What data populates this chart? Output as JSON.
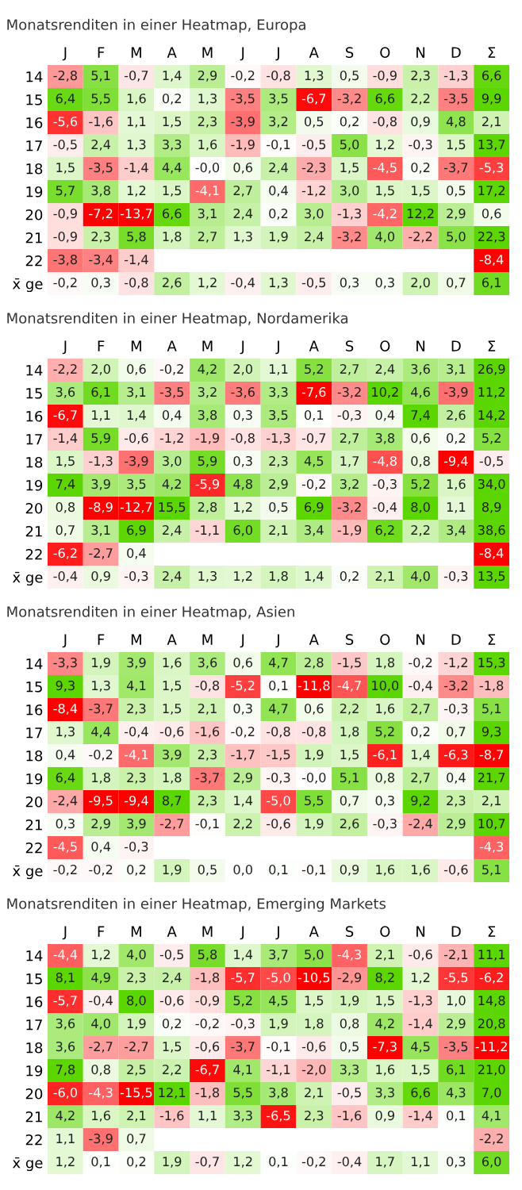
{
  "chart_data": [
    {
      "type": "heatmap",
      "title": "Monatsrenditen in einer Heatmap, Europa",
      "categories": [
        "J",
        "F",
        "M",
        "A",
        "M",
        "J",
        "J",
        "A",
        "S",
        "O",
        "N",
        "D",
        "Σ"
      ],
      "y_categories": [
        "14",
        "15",
        "16",
        "17",
        "18",
        "19",
        "20",
        "21",
        "22",
        "x̄ ge"
      ],
      "cells": [
        [
          -2.8,
          5.1,
          -0.7,
          1.4,
          2.9,
          -0.2,
          -0.8,
          1.3,
          0.5,
          -0.9,
          2.3,
          -1.3,
          6.6
        ],
        [
          6.4,
          5.5,
          1.6,
          0.2,
          1.3,
          -3.5,
          3.5,
          -6.7,
          -3.2,
          6.6,
          2.2,
          -3.5,
          9.9
        ],
        [
          -5.6,
          -1.6,
          1.1,
          1.5,
          2.3,
          -3.9,
          3.2,
          0.5,
          0.2,
          -0.8,
          0.9,
          4.8,
          2.1
        ],
        [
          -0.5,
          2.4,
          1.3,
          3.3,
          1.6,
          -1.9,
          -0.1,
          -0.5,
          5.0,
          1.2,
          -0.3,
          1.5,
          13.7
        ],
        [
          1.5,
          -3.5,
          -1.4,
          4.4,
          -0.0,
          0.6,
          2.4,
          -2.3,
          1.5,
          -4.5,
          0.2,
          -3.7,
          -5.3
        ],
        [
          5.7,
          3.8,
          1.2,
          1.5,
          -4.1,
          2.7,
          0.4,
          -1.2,
          3.0,
          1.5,
          1.5,
          0.5,
          17.2
        ],
        [
          -0.9,
          -7.2,
          -13.7,
          6.6,
          3.1,
          2.4,
          0.2,
          3.0,
          -1.3,
          -4.2,
          12.2,
          2.9,
          0.6
        ],
        [
          -0.9,
          2.3,
          5.8,
          1.8,
          2.7,
          1.3,
          1.9,
          2.4,
          -3.2,
          4.0,
          -2.2,
          5.0,
          22.3
        ],
        [
          -3.8,
          -3.4,
          -1.4,
          null,
          null,
          null,
          null,
          null,
          null,
          null,
          null,
          null,
          -8.4
        ],
        [
          -0.2,
          0.3,
          -0.8,
          2.6,
          1.2,
          -0.4,
          1.3,
          -0.5,
          0.3,
          0.3,
          2.0,
          0.7,
          6.1
        ]
      ],
      "cell_labels": [
        [
          "-2,8",
          "5,1",
          "-0,7",
          "1,4",
          "2,9",
          "-0,2",
          "-0,8",
          "1,3",
          "0,5",
          "-0,9",
          "2,3",
          "-1,3",
          "6,6"
        ],
        [
          "6,4",
          "5,5",
          "1,6",
          "0,2",
          "1,3",
          "-3,5",
          "3,5",
          "-6,7",
          "-3,2",
          "6,6",
          "2,2",
          "-3,5",
          "9,9"
        ],
        [
          "-5,6",
          "-1,6",
          "1,1",
          "1,5",
          "2,3",
          "-3,9",
          "3,2",
          "0,5",
          "0,2",
          "-0,8",
          "0,9",
          "4,8",
          "2,1"
        ],
        [
          "-0,5",
          "2,4",
          "1,3",
          "3,3",
          "1,6",
          "-1,9",
          "-0,1",
          "-0,5",
          "5,0",
          "1,2",
          "-0,3",
          "1,5",
          "13,7"
        ],
        [
          "1,5",
          "-3,5",
          "-1,4",
          "4,4",
          "-0,0",
          "0,6",
          "2,4",
          "-2,3",
          "1,5",
          "-4,5",
          "0,2",
          "-3,7",
          "-5,3"
        ],
        [
          "5,7",
          "3,8",
          "1,2",
          "1,5",
          "-4,1",
          "2,7",
          "0,4",
          "-1,2",
          "3,0",
          "1,5",
          "1,5",
          "0,5",
          "17,2"
        ],
        [
          "-0,9",
          "-7,2",
          "-13,7",
          "6,6",
          "3,1",
          "2,4",
          "0,2",
          "3,0",
          "-1,3",
          "-4,2",
          "12,2",
          "2,9",
          "0,6"
        ],
        [
          "-0,9",
          "2,3",
          "5,8",
          "1,8",
          "2,7",
          "1,3",
          "1,9",
          "2,4",
          "-3,2",
          "4,0",
          "-2,2",
          "5,0",
          "22,3"
        ],
        [
          "-3,8",
          "-3,4",
          "-1,4",
          null,
          null,
          null,
          null,
          null,
          null,
          null,
          null,
          null,
          "-8,4"
        ],
        [
          "-0,2",
          "0,3",
          "-0,8",
          "2,6",
          "1,2",
          "-0,4",
          "1,3",
          "-0,5",
          "0,3",
          "0,3",
          "2,0",
          "0,7",
          "6,1"
        ]
      ]
    },
    {
      "type": "heatmap",
      "title": "Monatsrenditen in einer Heatmap, Nordamerika",
      "categories": [
        "J",
        "F",
        "M",
        "A",
        "M",
        "J",
        "J",
        "A",
        "S",
        "O",
        "N",
        "D",
        "Σ"
      ],
      "y_categories": [
        "14",
        "15",
        "16",
        "17",
        "18",
        "19",
        "20",
        "21",
        "22",
        "x̄ ge"
      ],
      "cells": [
        [
          -2.2,
          2.0,
          0.6,
          -0.2,
          4.2,
          2.0,
          1.1,
          5.2,
          2.7,
          2.4,
          3.6,
          3.1,
          26.9
        ],
        [
          3.6,
          6.1,
          3.1,
          -3.5,
          3.2,
          -3.6,
          3.3,
          -7.6,
          -3.2,
          10.2,
          4.6,
          -3.9,
          11.2
        ],
        [
          -6.7,
          1.1,
          1.4,
          0.4,
          3.8,
          0.3,
          3.5,
          0.1,
          -0.3,
          0.4,
          7.4,
          2.6,
          14.2
        ],
        [
          -1.4,
          5.9,
          -0.6,
          -1.2,
          -1.9,
          -0.8,
          -1.3,
          -0.7,
          2.7,
          3.8,
          0.6,
          0.2,
          5.2
        ],
        [
          1.5,
          -1.3,
          -3.9,
          3.0,
          5.9,
          0.3,
          2.3,
          4.5,
          1.7,
          -4.8,
          0.8,
          -9.4,
          -0.5
        ],
        [
          7.4,
          3.9,
          3.5,
          4.2,
          -5.9,
          4.8,
          2.9,
          -0.2,
          3.2,
          -0.3,
          5.2,
          1.6,
          34.0
        ],
        [
          0.8,
          -8.9,
          -12.7,
          15.5,
          2.8,
          1.2,
          0.5,
          6.9,
          -3.2,
          -0.4,
          8.0,
          1.1,
          8.9
        ],
        [
          0.7,
          3.1,
          6.9,
          2.4,
          -1.1,
          6.0,
          2.1,
          3.4,
          -1.9,
          6.2,
          2.2,
          3.4,
          38.6
        ],
        [
          -6.2,
          -2.7,
          0.4,
          null,
          null,
          null,
          null,
          null,
          null,
          null,
          null,
          null,
          -8.4
        ],
        [
          -0.4,
          0.9,
          -0.3,
          2.4,
          1.3,
          1.2,
          1.8,
          1.4,
          0.2,
          2.1,
          4.0,
          -0.3,
          13.5
        ]
      ],
      "cell_labels": [
        [
          "-2,2",
          "2,0",
          "0,6",
          "-0,2",
          "4,2",
          "2,0",
          "1,1",
          "5,2",
          "2,7",
          "2,4",
          "3,6",
          "3,1",
          "26,9"
        ],
        [
          "3,6",
          "6,1",
          "3,1",
          "-3,5",
          "3,2",
          "-3,6",
          "3,3",
          "-7,6",
          "-3,2",
          "10,2",
          "4,6",
          "-3,9",
          "11,2"
        ],
        [
          "-6,7",
          "1,1",
          "1,4",
          "0,4",
          "3,8",
          "0,3",
          "3,5",
          "0,1",
          "-0,3",
          "0,4",
          "7,4",
          "2,6",
          "14,2"
        ],
        [
          "-1,4",
          "5,9",
          "-0,6",
          "-1,2",
          "-1,9",
          "-0,8",
          "-1,3",
          "-0,7",
          "2,7",
          "3,8",
          "0,6",
          "0,2",
          "5,2"
        ],
        [
          "1,5",
          "-1,3",
          "-3,9",
          "3,0",
          "5,9",
          "0,3",
          "2,3",
          "4,5",
          "1,7",
          "-4,8",
          "0,8",
          "-9,4",
          "-0,5"
        ],
        [
          "7,4",
          "3,9",
          "3,5",
          "4,2",
          "-5,9",
          "4,8",
          "2,9",
          "-0,2",
          "3,2",
          "-0,3",
          "5,2",
          "1,6",
          "34,0"
        ],
        [
          "0,8",
          "-8,9",
          "-12,7",
          "15,5",
          "2,8",
          "1,2",
          "0,5",
          "6,9",
          "-3,2",
          "-0,4",
          "8,0",
          "1,1",
          "8,9"
        ],
        [
          "0,7",
          "3,1",
          "6,9",
          "2,4",
          "-1,1",
          "6,0",
          "2,1",
          "3,4",
          "-1,9",
          "6,2",
          "2,2",
          "3,4",
          "38,6"
        ],
        [
          "-6,2",
          "-2,7",
          "0,4",
          null,
          null,
          null,
          null,
          null,
          null,
          null,
          null,
          null,
          "-8,4"
        ],
        [
          "-0,4",
          "0,9",
          "-0,3",
          "2,4",
          "1,3",
          "1,2",
          "1,8",
          "1,4",
          "0,2",
          "2,1",
          "4,0",
          "-0,3",
          "13,5"
        ]
      ]
    },
    {
      "type": "heatmap",
      "title": "Monatsrenditen in einer Heatmap, Asien",
      "categories": [
        "J",
        "F",
        "M",
        "A",
        "M",
        "J",
        "J",
        "A",
        "S",
        "O",
        "N",
        "D",
        "Σ"
      ],
      "y_categories": [
        "14",
        "15",
        "16",
        "17",
        "18",
        "19",
        "20",
        "21",
        "22",
        "x̄ ge"
      ],
      "cells": [
        [
          -3.3,
          1.9,
          3.9,
          1.6,
          3.6,
          0.6,
          4.7,
          2.8,
          -1.5,
          1.8,
          -0.2,
          -1.2,
          15.3
        ],
        [
          9.3,
          1.3,
          4.1,
          1.5,
          -0.8,
          -5.2,
          0.1,
          -11.8,
          -4.7,
          10.0,
          -0.4,
          -3.2,
          -1.8
        ],
        [
          -8.4,
          -3.7,
          2.3,
          1.5,
          2.1,
          0.3,
          4.7,
          0.6,
          2.2,
          1.6,
          2.7,
          -0.3,
          5.1
        ],
        [
          1.3,
          4.4,
          -0.4,
          -0.6,
          -1.6,
          -0.2,
          -0.8,
          -0.8,
          1.8,
          5.2,
          0.2,
          0.7,
          9.3
        ],
        [
          0.4,
          -0.2,
          -4.1,
          3.9,
          2.3,
          -1.7,
          -1.5,
          1.9,
          1.5,
          -6.1,
          1.4,
          -6.3,
          -8.7
        ],
        [
          6.4,
          1.8,
          2.3,
          1.8,
          -3.7,
          2.9,
          -0.3,
          -0.0,
          5.1,
          0.8,
          2.7,
          0.4,
          21.7
        ],
        [
          -2.4,
          -9.5,
          -9.4,
          8.7,
          2.3,
          1.4,
          -5.0,
          5.5,
          0.7,
          0.3,
          9.2,
          2.3,
          2.1
        ],
        [
          0.3,
          2.9,
          3.9,
          -2.7,
          -0.1,
          2.2,
          -0.6,
          1.9,
          2.6,
          -0.3,
          -2.4,
          2.9,
          10.7
        ],
        [
          -4.5,
          0.4,
          -0.3,
          null,
          null,
          null,
          null,
          null,
          null,
          null,
          null,
          null,
          -4.3
        ],
        [
          -0.2,
          -0.2,
          0.2,
          1.9,
          0.5,
          0.0,
          0.1,
          -0.1,
          0.9,
          1.6,
          1.6,
          -0.6,
          5.1
        ]
      ],
      "cell_labels": [
        [
          "-3,3",
          "1,9",
          "3,9",
          "1,6",
          "3,6",
          "0,6",
          "4,7",
          "2,8",
          "-1,5",
          "1,8",
          "-0,2",
          "-1,2",
          "15,3"
        ],
        [
          "9,3",
          "1,3",
          "4,1",
          "1,5",
          "-0,8",
          "-5,2",
          "0,1",
          "-11,8",
          "-4,7",
          "10,0",
          "-0,4",
          "-3,2",
          "-1,8"
        ],
        [
          "-8,4",
          "-3,7",
          "2,3",
          "1,5",
          "2,1",
          "0,3",
          "4,7",
          "0,6",
          "2,2",
          "1,6",
          "2,7",
          "-0,3",
          "5,1"
        ],
        [
          "1,3",
          "4,4",
          "-0,4",
          "-0,6",
          "-1,6",
          "-0,2",
          "-0,8",
          "-0,8",
          "1,8",
          "5,2",
          "0,2",
          "0,7",
          "9,3"
        ],
        [
          "0,4",
          "-0,2",
          "-4,1",
          "3,9",
          "2,3",
          "-1,7",
          "-1,5",
          "1,9",
          "1,5",
          "-6,1",
          "1,4",
          "-6,3",
          "-8,7"
        ],
        [
          "6,4",
          "1,8",
          "2,3",
          "1,8",
          "-3,7",
          "2,9",
          "-0,3",
          "-0,0",
          "5,1",
          "0,8",
          "2,7",
          "0,4",
          "21,7"
        ],
        [
          "-2,4",
          "-9,5",
          "-9,4",
          "8,7",
          "2,3",
          "1,4",
          "-5,0",
          "5,5",
          "0,7",
          "0,3",
          "9,2",
          "2,3",
          "2,1"
        ],
        [
          "0,3",
          "2,9",
          "3,9",
          "-2,7",
          "-0,1",
          "2,2",
          "-0,6",
          "1,9",
          "2,6",
          "-0,3",
          "-2,4",
          "2,9",
          "10,7"
        ],
        [
          "-4,5",
          "0,4",
          "-0,3",
          null,
          null,
          null,
          null,
          null,
          null,
          null,
          null,
          null,
          "-4,3"
        ],
        [
          "-0,2",
          "-0,2",
          "0,2",
          "1,9",
          "0,5",
          "0,0",
          "0,1",
          "-0,1",
          "0,9",
          "1,6",
          "1,6",
          "-0,6",
          "5,1"
        ]
      ]
    },
    {
      "type": "heatmap",
      "title": "Monatsrenditen in einer Heatmap, Emerging Markets",
      "categories": [
        "J",
        "F",
        "M",
        "A",
        "M",
        "J",
        "J",
        "A",
        "S",
        "O",
        "N",
        "D",
        "Σ"
      ],
      "y_categories": [
        "14",
        "15",
        "16",
        "17",
        "18",
        "19",
        "20",
        "21",
        "22",
        "x̄ ge"
      ],
      "cells": [
        [
          -4.4,
          1.2,
          4.0,
          -0.5,
          5.8,
          1.4,
          3.7,
          5.0,
          -4.3,
          2.1,
          -0.6,
          -2.1,
          11.1
        ],
        [
          8.1,
          4.9,
          2.3,
          2.4,
          -1.8,
          -5.7,
          -5.0,
          -10.5,
          -2.9,
          8.2,
          1.2,
          -5.5,
          -6.2
        ],
        [
          -5.7,
          -0.4,
          8.0,
          -0.6,
          -0.9,
          5.2,
          4.5,
          1.5,
          1.9,
          1.5,
          -1.3,
          1.0,
          14.8
        ],
        [
          3.6,
          4.0,
          1.9,
          0.2,
          -0.2,
          -0.3,
          1.9,
          1.8,
          0.8,
          4.2,
          -1.4,
          2.9,
          20.8
        ],
        [
          3.6,
          -2.7,
          -2.7,
          1.5,
          -0.6,
          -3.7,
          -0.1,
          -0.6,
          0.5,
          -7.3,
          4.5,
          -3.5,
          -11.2
        ],
        [
          7.8,
          0.8,
          2.5,
          2.2,
          -6.7,
          4.1,
          -1.1,
          -2.0,
          3.3,
          1.6,
          1.5,
          6.1,
          21.0
        ],
        [
          -6.0,
          -4.3,
          -15.5,
          12.1,
          -1.8,
          5.5,
          3.8,
          2.1,
          -0.5,
          3.3,
          6.6,
          4.3,
          7.0
        ],
        [
          4.2,
          1.6,
          2.1,
          -1.6,
          1.1,
          3.3,
          -6.5,
          2.3,
          -1.6,
          0.9,
          -1.4,
          0.1,
          4.1
        ],
        [
          1.1,
          -3.9,
          0.7,
          null,
          null,
          null,
          null,
          null,
          null,
          null,
          null,
          null,
          -2.2
        ],
        [
          1.2,
          0.1,
          0.2,
          1.9,
          -0.7,
          1.2,
          0.1,
          -0.2,
          -0.4,
          1.7,
          1.1,
          0.3,
          6.0
        ]
      ],
      "cell_labels": [
        [
          "-4,4",
          "1,2",
          "4,0",
          "-0,5",
          "5,8",
          "1,4",
          "3,7",
          "5,0",
          "-4,3",
          "2,1",
          "-0,6",
          "-2,1",
          "11,1"
        ],
        [
          "8,1",
          "4,9",
          "2,3",
          "2,4",
          "-1,8",
          "-5,7",
          "-5,0",
          "-10,5",
          "-2,9",
          "8,2",
          "1,2",
          "-5,5",
          "-6,2"
        ],
        [
          "-5,7",
          "-0,4",
          "8,0",
          "-0,6",
          "-0,9",
          "5,2",
          "4,5",
          "1,5",
          "1,9",
          "1,5",
          "-1,3",
          "1,0",
          "14,8"
        ],
        [
          "3,6",
          "4,0",
          "1,9",
          "0,2",
          "-0,2",
          "-0,3",
          "1,9",
          "1,8",
          "0,8",
          "4,2",
          "-1,4",
          "2,9",
          "20,8"
        ],
        [
          "3,6",
          "-2,7",
          "-2,7",
          "1,5",
          "-0,6",
          "-3,7",
          "-0,1",
          "-0,6",
          "0,5",
          "-7,3",
          "4,5",
          "-3,5",
          "-11,2"
        ],
        [
          "7,8",
          "0,8",
          "2,5",
          "2,2",
          "-6,7",
          "4,1",
          "-1,1",
          "-2,0",
          "3,3",
          "1,6",
          "1,5",
          "6,1",
          "21,0"
        ],
        [
          "-6,0",
          "-4,3",
          "-15,5",
          "12,1",
          "-1,8",
          "5,5",
          "3,8",
          "2,1",
          "-0,5",
          "3,3",
          "6,6",
          "4,3",
          "7,0"
        ],
        [
          "4,2",
          "1,6",
          "2,1",
          "-1,6",
          "1,1",
          "3,3",
          "-6,5",
          "2,3",
          "-1,6",
          "0,9",
          "-1,4",
          "0,1",
          "4,1"
        ],
        [
          "1,1",
          "-3,9",
          "0,7",
          null,
          null,
          null,
          null,
          null,
          null,
          null,
          null,
          null,
          "-2,2"
        ],
        [
          "1,2",
          "0,1",
          "0,2",
          "1,9",
          "-0,7",
          "1,2",
          "0,1",
          "-0,2",
          "-0,4",
          "1,7",
          "1,1",
          "0,3",
          "6,0"
        ]
      ]
    }
  ]
}
